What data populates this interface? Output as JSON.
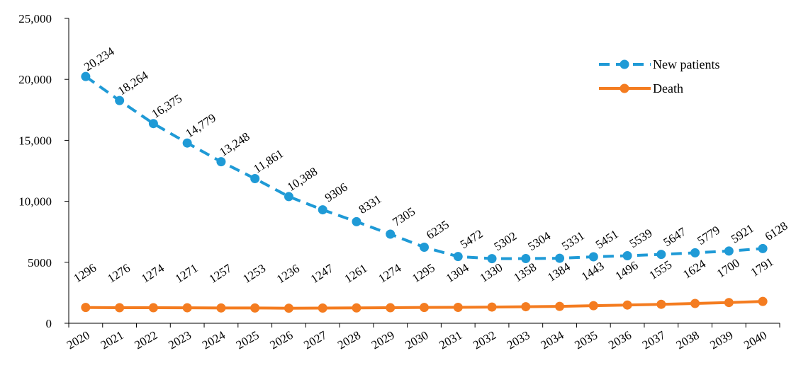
{
  "chart_data": {
    "type": "line",
    "title": "",
    "xlabel": "",
    "ylabel": "",
    "x": [
      "2020",
      "2021",
      "2022",
      "2023",
      "2024",
      "2025",
      "2026",
      "2027",
      "2028",
      "2029",
      "2030",
      "2031",
      "2032",
      "2033",
      "2034",
      "2035",
      "2036",
      "2037",
      "2038",
      "2039",
      "2040"
    ],
    "ylim": [
      0,
      25000
    ],
    "yticks": [
      0,
      5000,
      10000,
      15000,
      20000,
      25000
    ],
    "ytick_labels": [
      "0",
      "5000",
      "10,000",
      "15,000",
      "20,000",
      "25,000"
    ],
    "grid": false,
    "legend_position": "top-right",
    "series": [
      {
        "name": "New patients",
        "color": "#1f9ad6",
        "style": "dashed",
        "values": [
          20234,
          18264,
          16375,
          14779,
          13248,
          11861,
          10388,
          9306,
          8331,
          7305,
          6235,
          5472,
          5302,
          5304,
          5331,
          5451,
          5539,
          5647,
          5779,
          5921,
          6128
        ],
        "labels": [
          "20,234",
          "18,264",
          "16,375",
          "14,779",
          "13,248",
          "11,861",
          "10,388",
          "9306",
          "8331",
          "7305",
          "6235",
          "5472",
          "5302",
          "5304",
          "5331",
          "5451",
          "5539",
          "5647",
          "5779",
          "5921",
          "6128"
        ]
      },
      {
        "name": "Death",
        "color": "#f47c20",
        "style": "solid",
        "values": [
          1296,
          1276,
          1274,
          1271,
          1257,
          1253,
          1236,
          1247,
          1261,
          1274,
          1295,
          1304,
          1330,
          1358,
          1384,
          1443,
          1496,
          1555,
          1624,
          1700,
          1791
        ],
        "labels": [
          "1296",
          "1276",
          "1274",
          "1271",
          "1257",
          "1253",
          "1236",
          "1247",
          "1261",
          "1274",
          "1295",
          "1304",
          "1330",
          "1358",
          "1384",
          "1443",
          "1496",
          "1555",
          "1624",
          "1700",
          "1791"
        ]
      }
    ]
  }
}
